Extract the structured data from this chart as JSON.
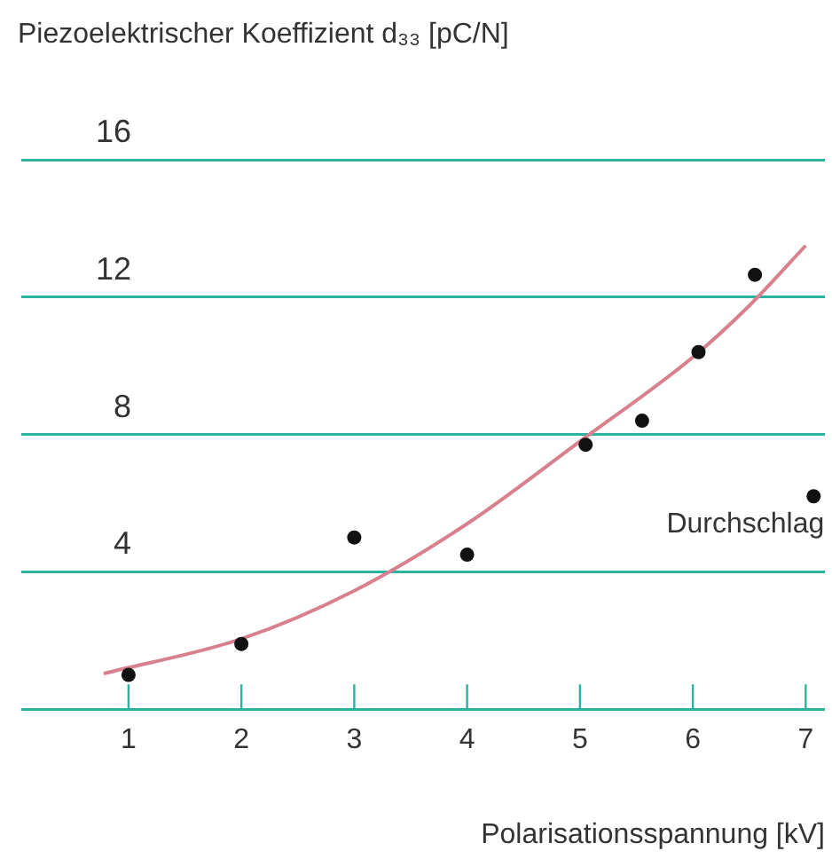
{
  "chart_data": {
    "type": "scatter",
    "ylabel": "Piezoelektrischer Koeffizient d₃₃ [pC/N]",
    "xlabel": "Polarisationsspannung [kV]",
    "xlim": [
      0.05,
      7.17
    ],
    "xticks": [
      1,
      2,
      3,
      4,
      5,
      6,
      7
    ],
    "ylim": [
      0,
      16
    ],
    "yticks": [
      {
        "value": 0,
        "label": null
      },
      4,
      8,
      12,
      16
    ],
    "grid": "y",
    "series": [
      {
        "color": "#111111",
        "marker": "circle",
        "x": [
          1,
          2,
          3,
          4,
          5.05,
          5.55,
          6.05,
          6.55,
          7.07
        ],
        "values": [
          1.0,
          1.9,
          5.0,
          4.5,
          7.7,
          8.4,
          10.4,
          12.65,
          6.2
        ]
      },
      {
        "type": "line",
        "color": "#d9808f",
        "marker": "none",
        "line_style": "solid",
        "x": [
          0.78,
          2,
          3,
          4,
          5,
          6,
          6.5,
          7
        ],
        "values": [
          1.04,
          2.05,
          3.45,
          5.4,
          7.8,
          10.25,
          11.75,
          13.5
        ]
      }
    ],
    "annotations": [
      {
        "text": "Durchschlag",
        "x": 7.07,
        "y": 6.2
      }
    ]
  }
}
